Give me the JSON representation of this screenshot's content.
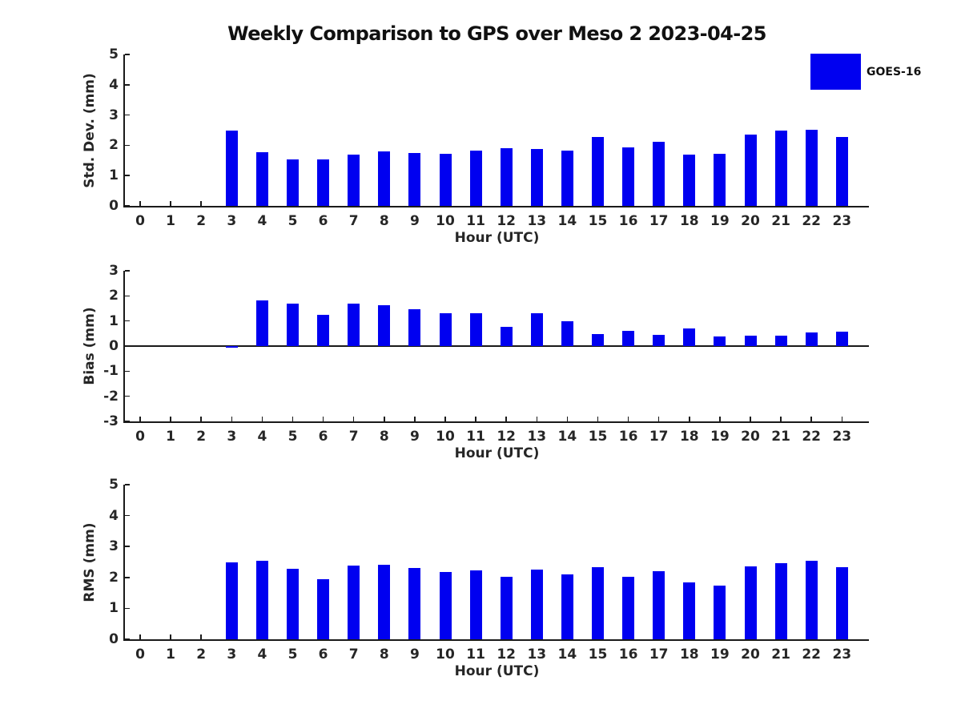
{
  "title": "Weekly Comparison to GPS over Meso 2 2023-04-25",
  "legend": {
    "label": "GOES-16",
    "swatch_color": "#0000f0"
  },
  "colors": {
    "bar": "#0000f0",
    "axis": "#1a1a1a",
    "text": "#262626"
  },
  "chart_data": [
    {
      "type": "bar",
      "panel": "std-dev",
      "series_name": "GOES-16",
      "ylabel": "Std. Dev. (mm)",
      "xlabel": "Hour (UTC)",
      "categories": [
        "0",
        "1",
        "2",
        "3",
        "4",
        "5",
        "6",
        "7",
        "8",
        "9",
        "10",
        "11",
        "12",
        "13",
        "14",
        "15",
        "16",
        "17",
        "18",
        "19",
        "20",
        "21",
        "22",
        "23"
      ],
      "values": [
        0,
        0,
        0,
        2.49,
        1.78,
        1.53,
        1.53,
        1.68,
        1.79,
        1.74,
        1.72,
        1.83,
        1.9,
        1.87,
        1.82,
        2.27,
        1.94,
        2.11,
        1.68,
        1.71,
        2.35,
        2.48,
        2.51,
        2.28
      ],
      "ylim": [
        0,
        5
      ],
      "yticks": [
        0,
        1,
        2,
        3,
        4,
        5
      ],
      "grid": false,
      "legend_position": "upper-right",
      "zero_line": false
    },
    {
      "type": "bar",
      "panel": "bias",
      "series_name": "GOES-16",
      "ylabel": "Bias (mm)",
      "xlabel": "Hour (UTC)",
      "categories": [
        "0",
        "1",
        "2",
        "3",
        "4",
        "5",
        "6",
        "7",
        "8",
        "9",
        "10",
        "11",
        "12",
        "13",
        "14",
        "15",
        "16",
        "17",
        "18",
        "19",
        "20",
        "21",
        "22",
        "23"
      ],
      "values": [
        0,
        0,
        0,
        -0.05,
        1.83,
        1.7,
        1.23,
        1.7,
        1.63,
        1.47,
        1.3,
        1.3,
        0.76,
        1.32,
        0.98,
        0.48,
        0.6,
        0.45,
        0.7,
        0.38,
        0.42,
        0.42,
        0.54,
        0.56
      ],
      "ylim": [
        -3,
        3
      ],
      "yticks": [
        -3,
        -2,
        -1,
        0,
        1,
        2,
        3
      ],
      "grid": false,
      "legend_position": "none",
      "zero_line": true
    },
    {
      "type": "bar",
      "panel": "rms",
      "series_name": "GOES-16",
      "ylabel": "RMS (mm)",
      "xlabel": "Hour (UTC)",
      "categories": [
        "0",
        "1",
        "2",
        "3",
        "4",
        "5",
        "6",
        "7",
        "8",
        "9",
        "10",
        "11",
        "12",
        "13",
        "14",
        "15",
        "16",
        "17",
        "18",
        "19",
        "20",
        "21",
        "22",
        "23"
      ],
      "values": [
        0,
        0,
        0,
        2.49,
        2.55,
        2.29,
        1.95,
        2.39,
        2.41,
        2.31,
        2.17,
        2.23,
        2.02,
        2.26,
        2.1,
        2.34,
        2.03,
        2.19,
        1.83,
        1.74,
        2.36,
        2.47,
        2.55,
        2.34
      ],
      "ylim": [
        0,
        5
      ],
      "yticks": [
        0,
        1,
        2,
        3,
        4,
        5
      ],
      "grid": false,
      "legend_position": "none",
      "zero_line": false
    }
  ]
}
